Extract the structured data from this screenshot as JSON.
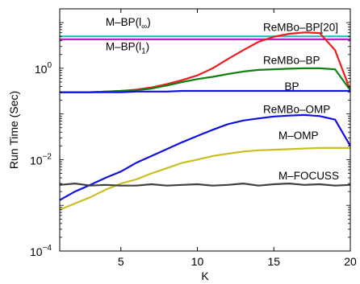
{
  "chart_data": {
    "type": "line",
    "title": "",
    "xlabel": "K",
    "ylabel": "Run Time (Sec)",
    "xlim": [
      1,
      20
    ],
    "ylim": [
      0.0001,
      20
    ],
    "yscale": "log",
    "grid": false,
    "legend": "none",
    "x_ticks": [
      5,
      10,
      15,
      20
    ],
    "y_ticks": [
      {
        "value": 0.0001,
        "base": "10",
        "exp": "−4"
      },
      {
        "value": 0.01,
        "base": "10",
        "exp": "−2"
      },
      {
        "value": 1,
        "base": "10",
        "exp": "0"
      }
    ],
    "series": [
      {
        "name": "M–BP(l∞)",
        "label_base": "M–BP(l",
        "label_sub": "∞",
        "label_tail": ")",
        "label_at": {
          "x": 4.0,
          "y": 8.5
        },
        "color": "#20c0c0",
        "x": [
          1,
          2,
          3,
          4,
          5,
          6,
          7,
          8,
          9,
          10,
          11,
          12,
          13,
          14,
          15,
          16,
          17,
          18,
          19,
          20
        ],
        "y": [
          5,
          5,
          5,
          5,
          5,
          5,
          5,
          5,
          5,
          5,
          5,
          5,
          5,
          5,
          5,
          5,
          5,
          5,
          5,
          5
        ]
      },
      {
        "name": "M–BP(l1)",
        "label_base": "M–BP(l",
        "label_sub": "1",
        "label_tail": ")",
        "label_at": {
          "x": 4.0,
          "y": 2.5
        },
        "color": "#c020c0",
        "x": [
          1,
          2,
          3,
          4,
          5,
          6,
          7,
          8,
          9,
          10,
          11,
          12,
          13,
          14,
          15,
          16,
          17,
          18,
          19,
          20
        ],
        "y": [
          4.3,
          4.3,
          4.3,
          4.3,
          4.3,
          4.3,
          4.3,
          4.3,
          4.3,
          4.3,
          4.3,
          4.3,
          4.3,
          4.3,
          4.3,
          4.3,
          4.3,
          4.3,
          4.3,
          4.3
        ]
      },
      {
        "name": "ReMBo–BP[20]",
        "label_at": {
          "x": 14.3,
          "y": 6.5
        },
        "color": "#ee1c1c",
        "x": [
          1,
          2,
          3,
          4,
          5,
          6,
          7,
          8,
          9,
          10,
          11,
          12,
          13,
          14,
          15,
          16,
          17,
          18,
          19,
          20
        ],
        "y": [
          0.3,
          0.3,
          0.3,
          0.31,
          0.32,
          0.34,
          0.38,
          0.45,
          0.55,
          0.7,
          1.0,
          1.6,
          2.5,
          3.8,
          4.9,
          5.7,
          6.1,
          5.9,
          2.5,
          0.33
        ]
      },
      {
        "name": "ReMBo–BP",
        "label_at": {
          "x": 14.3,
          "y": 1.25
        },
        "color": "#108010",
        "x": [
          1,
          2,
          3,
          4,
          5,
          6,
          7,
          8,
          9,
          10,
          11,
          12,
          13,
          14,
          15,
          16,
          17,
          18,
          19,
          20
        ],
        "y": [
          0.3,
          0.3,
          0.3,
          0.31,
          0.32,
          0.33,
          0.36,
          0.42,
          0.5,
          0.58,
          0.65,
          0.75,
          0.85,
          0.92,
          0.95,
          0.98,
          1.0,
          1.0,
          0.95,
          0.33
        ]
      },
      {
        "name": "BP",
        "label_at": {
          "x": 15.7,
          "y": 0.33
        },
        "color": "#1010ee",
        "x": [
          1,
          2,
          3,
          4,
          5,
          6,
          7,
          8,
          9,
          10,
          11,
          12,
          13,
          14,
          15,
          16,
          17,
          18,
          19,
          20
        ],
        "y": [
          0.3,
          0.3,
          0.3,
          0.3,
          0.3,
          0.31,
          0.31,
          0.31,
          0.32,
          0.32,
          0.32,
          0.32,
          0.32,
          0.32,
          0.32,
          0.32,
          0.32,
          0.32,
          0.32,
          0.32
        ]
      },
      {
        "name": "ReMBo–OMP",
        "label_at": {
          "x": 14.3,
          "y": 0.105
        },
        "color": "#1010dd",
        "x": [
          1,
          2,
          3,
          4,
          5,
          6,
          7,
          8,
          9,
          10,
          11,
          12,
          13,
          14,
          15,
          16,
          17,
          18,
          19,
          20
        ],
        "y": [
          0.0013,
          0.002,
          0.0028,
          0.004,
          0.0055,
          0.0085,
          0.012,
          0.017,
          0.024,
          0.033,
          0.045,
          0.06,
          0.072,
          0.08,
          0.088,
          0.092,
          0.095,
          0.09,
          0.075,
          0.02
        ]
      },
      {
        "name": "M–OMP",
        "label_at": {
          "x": 15.3,
          "y": 0.028
        },
        "color": "#c8c020",
        "x": [
          1,
          2,
          3,
          4,
          5,
          6,
          7,
          8,
          9,
          10,
          11,
          12,
          13,
          14,
          15,
          16,
          17,
          18,
          19,
          20
        ],
        "y": [
          0.0008,
          0.0011,
          0.0015,
          0.0022,
          0.003,
          0.0037,
          0.005,
          0.0065,
          0.0085,
          0.01,
          0.012,
          0.0135,
          0.015,
          0.016,
          0.0165,
          0.017,
          0.0175,
          0.018,
          0.018,
          0.018
        ]
      },
      {
        "name": "M–FOCUSS",
        "label_at": {
          "x": 15.3,
          "y": 0.0037
        },
        "color": "#404040",
        "x": [
          1,
          2,
          3,
          4,
          5,
          6,
          7,
          8,
          9,
          10,
          11,
          12,
          13,
          14,
          15,
          16,
          17,
          18,
          19,
          20
        ],
        "y": [
          0.0028,
          0.003,
          0.0027,
          0.0028,
          0.0027,
          0.0027,
          0.0029,
          0.0027,
          0.0028,
          0.0029,
          0.0027,
          0.0028,
          0.003,
          0.0027,
          0.0029,
          0.003,
          0.0028,
          0.0029,
          0.0027,
          0.0028
        ]
      }
    ]
  }
}
